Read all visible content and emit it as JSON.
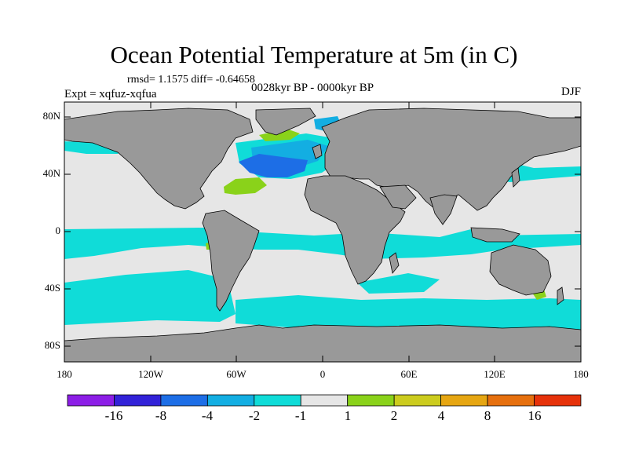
{
  "title": "Ocean Potential Temperature at 5m (in C)",
  "stats": {
    "rmsd_label": "rmsd=",
    "rmsd_value": "1.1575",
    "diff_label": "diff=",
    "diff_value": "-0.64658"
  },
  "experiment": "Expt = xqfuz-xqfua",
  "period": "0028kyr BP - 0000kyr BP",
  "season": "DJF",
  "y_ticks": [
    "80N",
    "40N",
    "0",
    "40S",
    "80S"
  ],
  "x_ticks": [
    "180",
    "120W",
    "60W",
    "0",
    "60E",
    "120E",
    "180"
  ],
  "colorbar": {
    "colors": [
      "#8c1ee6",
      "#3222d8",
      "#1d6ee6",
      "#13aee2",
      "#10dcd8",
      "#e6e6e6",
      "#8ad21a",
      "#cccc1e",
      "#e6a612",
      "#e6700e",
      "#e6320a"
    ],
    "labels": [
      "-16",
      "-8",
      "-4",
      "-2",
      "-1",
      "1",
      "2",
      "4",
      "8",
      "16"
    ]
  },
  "map_colors": {
    "land": "#999999",
    "ocean_neutral": "#e6e6e6"
  }
}
